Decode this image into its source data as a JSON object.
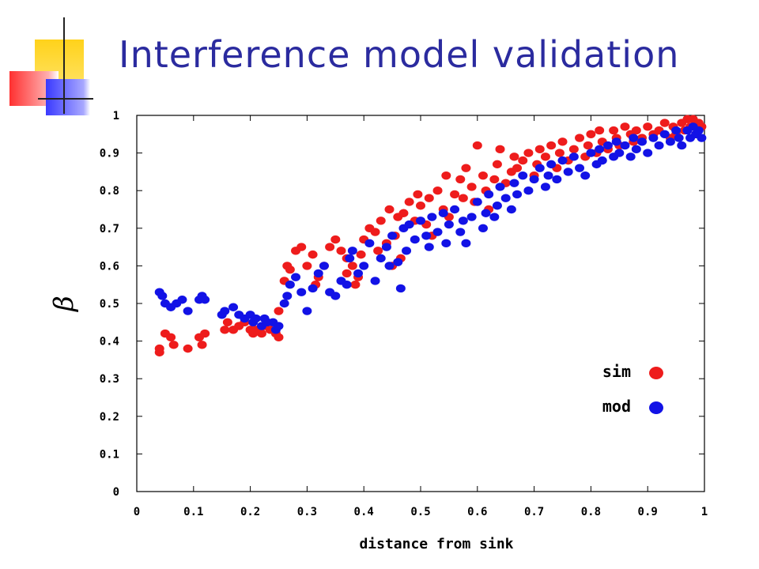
{
  "slide": {
    "title": "Interference model validation"
  },
  "chart_data": {
    "type": "scatter",
    "title": "",
    "xlabel": "distance from sink",
    "ylabel": "β",
    "xlim": [
      0,
      1
    ],
    "ylim": [
      0,
      1
    ],
    "x_ticks": [
      "0",
      "0.1",
      "0.2",
      "0.3",
      "0.4",
      "0.5",
      "0.6",
      "0.7",
      "0.8",
      "0.9",
      "1"
    ],
    "y_ticks": [
      "0",
      "0.1",
      "0.2",
      "0.3",
      "0.4",
      "0.5",
      "0.6",
      "0.7",
      "0.8",
      "0.9",
      "1"
    ],
    "grid": false,
    "legend_position": "bottom-right",
    "series": [
      {
        "name": "sim",
        "color": "#ee1c1c",
        "points": [
          [
            0.04,
            0.38
          ],
          [
            0.04,
            0.37
          ],
          [
            0.05,
            0.42
          ],
          [
            0.06,
            0.41
          ],
          [
            0.065,
            0.39
          ],
          [
            0.09,
            0.38
          ],
          [
            0.11,
            0.41
          ],
          [
            0.115,
            0.39
          ],
          [
            0.12,
            0.42
          ],
          [
            0.155,
            0.43
          ],
          [
            0.16,
            0.45
          ],
          [
            0.17,
            0.43
          ],
          [
            0.18,
            0.44
          ],
          [
            0.19,
            0.45
          ],
          [
            0.2,
            0.43
          ],
          [
            0.205,
            0.42
          ],
          [
            0.21,
            0.43
          ],
          [
            0.22,
            0.42
          ],
          [
            0.225,
            0.44
          ],
          [
            0.235,
            0.43
          ],
          [
            0.245,
            0.42
          ],
          [
            0.25,
            0.41
          ],
          [
            0.25,
            0.48
          ],
          [
            0.26,
            0.56
          ],
          [
            0.265,
            0.6
          ],
          [
            0.27,
            0.59
          ],
          [
            0.28,
            0.64
          ],
          [
            0.29,
            0.65
          ],
          [
            0.3,
            0.6
          ],
          [
            0.31,
            0.63
          ],
          [
            0.315,
            0.55
          ],
          [
            0.32,
            0.57
          ],
          [
            0.33,
            0.6
          ],
          [
            0.34,
            0.65
          ],
          [
            0.35,
            0.67
          ],
          [
            0.36,
            0.64
          ],
          [
            0.37,
            0.62
          ],
          [
            0.37,
            0.58
          ],
          [
            0.38,
            0.6
          ],
          [
            0.385,
            0.55
          ],
          [
            0.39,
            0.57
          ],
          [
            0.395,
            0.63
          ],
          [
            0.4,
            0.67
          ],
          [
            0.41,
            0.7
          ],
          [
            0.42,
            0.69
          ],
          [
            0.425,
            0.64
          ],
          [
            0.43,
            0.72
          ],
          [
            0.44,
            0.66
          ],
          [
            0.445,
            0.75
          ],
          [
            0.45,
            0.6
          ],
          [
            0.455,
            0.68
          ],
          [
            0.46,
            0.73
          ],
          [
            0.465,
            0.62
          ],
          [
            0.47,
            0.74
          ],
          [
            0.48,
            0.77
          ],
          [
            0.49,
            0.72
          ],
          [
            0.495,
            0.79
          ],
          [
            0.5,
            0.76
          ],
          [
            0.51,
            0.71
          ],
          [
            0.515,
            0.78
          ],
          [
            0.52,
            0.68
          ],
          [
            0.53,
            0.8
          ],
          [
            0.54,
            0.75
          ],
          [
            0.545,
            0.84
          ],
          [
            0.55,
            0.73
          ],
          [
            0.56,
            0.79
          ],
          [
            0.57,
            0.83
          ],
          [
            0.575,
            0.78
          ],
          [
            0.58,
            0.86
          ],
          [
            0.59,
            0.81
          ],
          [
            0.595,
            0.77
          ],
          [
            0.6,
            0.92
          ],
          [
            0.61,
            0.84
          ],
          [
            0.615,
            0.8
          ],
          [
            0.62,
            0.75
          ],
          [
            0.63,
            0.83
          ],
          [
            0.635,
            0.87
          ],
          [
            0.64,
            0.91
          ],
          [
            0.65,
            0.82
          ],
          [
            0.66,
            0.85
          ],
          [
            0.665,
            0.89
          ],
          [
            0.67,
            0.86
          ],
          [
            0.68,
            0.88
          ],
          [
            0.69,
            0.9
          ],
          [
            0.7,
            0.84
          ],
          [
            0.705,
            0.87
          ],
          [
            0.71,
            0.91
          ],
          [
            0.72,
            0.89
          ],
          [
            0.73,
            0.92
          ],
          [
            0.74,
            0.86
          ],
          [
            0.745,
            0.9
          ],
          [
            0.75,
            0.93
          ],
          [
            0.76,
            0.88
          ],
          [
            0.77,
            0.91
          ],
          [
            0.78,
            0.94
          ],
          [
            0.79,
            0.89
          ],
          [
            0.795,
            0.92
          ],
          [
            0.8,
            0.95
          ],
          [
            0.81,
            0.9
          ],
          [
            0.815,
            0.96
          ],
          [
            0.82,
            0.93
          ],
          [
            0.83,
            0.91
          ],
          [
            0.84,
            0.96
          ],
          [
            0.845,
            0.94
          ],
          [
            0.85,
            0.92
          ],
          [
            0.86,
            0.97
          ],
          [
            0.87,
            0.95
          ],
          [
            0.875,
            0.93
          ],
          [
            0.88,
            0.96
          ],
          [
            0.89,
            0.94
          ],
          [
            0.9,
            0.97
          ],
          [
            0.91,
            0.95
          ],
          [
            0.92,
            0.96
          ],
          [
            0.93,
            0.98
          ],
          [
            0.94,
            0.94
          ],
          [
            0.945,
            0.97
          ],
          [
            0.95,
            0.95
          ],
          [
            0.96,
            0.98
          ],
          [
            0.965,
            0.96
          ],
          [
            0.97,
            0.99
          ],
          [
            0.975,
            0.97
          ],
          [
            0.98,
            0.99
          ],
          [
            0.985,
            0.95
          ],
          [
            0.99,
            0.98
          ],
          [
            0.995,
            0.97
          ]
        ]
      },
      {
        "name": "mod",
        "color": "#1212e6",
        "points": [
          [
            0.04,
            0.53
          ],
          [
            0.045,
            0.52
          ],
          [
            0.05,
            0.5
          ],
          [
            0.06,
            0.49
          ],
          [
            0.07,
            0.5
          ],
          [
            0.08,
            0.51
          ],
          [
            0.09,
            0.48
          ],
          [
            0.11,
            0.51
          ],
          [
            0.115,
            0.52
          ],
          [
            0.12,
            0.51
          ],
          [
            0.15,
            0.47
          ],
          [
            0.155,
            0.48
          ],
          [
            0.17,
            0.49
          ],
          [
            0.18,
            0.47
          ],
          [
            0.19,
            0.46
          ],
          [
            0.2,
            0.47
          ],
          [
            0.205,
            0.45
          ],
          [
            0.21,
            0.46
          ],
          [
            0.22,
            0.44
          ],
          [
            0.225,
            0.46
          ],
          [
            0.23,
            0.45
          ],
          [
            0.24,
            0.45
          ],
          [
            0.245,
            0.43
          ],
          [
            0.25,
            0.44
          ],
          [
            0.26,
            0.5
          ],
          [
            0.265,
            0.52
          ],
          [
            0.27,
            0.55
          ],
          [
            0.28,
            0.57
          ],
          [
            0.29,
            0.53
          ],
          [
            0.3,
            0.48
          ],
          [
            0.31,
            0.54
          ],
          [
            0.32,
            0.58
          ],
          [
            0.33,
            0.6
          ],
          [
            0.34,
            0.53
          ],
          [
            0.35,
            0.52
          ],
          [
            0.36,
            0.56
          ],
          [
            0.37,
            0.55
          ],
          [
            0.375,
            0.62
          ],
          [
            0.38,
            0.64
          ],
          [
            0.39,
            0.58
          ],
          [
            0.4,
            0.6
          ],
          [
            0.41,
            0.66
          ],
          [
            0.42,
            0.56
          ],
          [
            0.43,
            0.62
          ],
          [
            0.44,
            0.65
          ],
          [
            0.445,
            0.6
          ],
          [
            0.45,
            0.68
          ],
          [
            0.46,
            0.61
          ],
          [
            0.465,
            0.54
          ],
          [
            0.47,
            0.7
          ],
          [
            0.475,
            0.64
          ],
          [
            0.48,
            0.71
          ],
          [
            0.49,
            0.67
          ],
          [
            0.5,
            0.72
          ],
          [
            0.51,
            0.68
          ],
          [
            0.515,
            0.65
          ],
          [
            0.52,
            0.73
          ],
          [
            0.53,
            0.69
          ],
          [
            0.54,
            0.74
          ],
          [
            0.545,
            0.66
          ],
          [
            0.55,
            0.71
          ],
          [
            0.56,
            0.75
          ],
          [
            0.57,
            0.69
          ],
          [
            0.575,
            0.72
          ],
          [
            0.58,
            0.66
          ],
          [
            0.59,
            0.73
          ],
          [
            0.6,
            0.77
          ],
          [
            0.61,
            0.7
          ],
          [
            0.615,
            0.74
          ],
          [
            0.62,
            0.79
          ],
          [
            0.63,
            0.73
          ],
          [
            0.635,
            0.76
          ],
          [
            0.64,
            0.81
          ],
          [
            0.65,
            0.78
          ],
          [
            0.66,
            0.75
          ],
          [
            0.665,
            0.82
          ],
          [
            0.67,
            0.79
          ],
          [
            0.68,
            0.84
          ],
          [
            0.69,
            0.8
          ],
          [
            0.7,
            0.83
          ],
          [
            0.71,
            0.86
          ],
          [
            0.72,
            0.81
          ],
          [
            0.725,
            0.84
          ],
          [
            0.73,
            0.87
          ],
          [
            0.74,
            0.83
          ],
          [
            0.75,
            0.88
          ],
          [
            0.76,
            0.85
          ],
          [
            0.77,
            0.89
          ],
          [
            0.78,
            0.86
          ],
          [
            0.79,
            0.84
          ],
          [
            0.8,
            0.9
          ],
          [
            0.81,
            0.87
          ],
          [
            0.815,
            0.91
          ],
          [
            0.82,
            0.88
          ],
          [
            0.83,
            0.92
          ],
          [
            0.84,
            0.89
          ],
          [
            0.845,
            0.93
          ],
          [
            0.85,
            0.9
          ],
          [
            0.86,
            0.92
          ],
          [
            0.87,
            0.89
          ],
          [
            0.875,
            0.94
          ],
          [
            0.88,
            0.91
          ],
          [
            0.89,
            0.93
          ],
          [
            0.9,
            0.9
          ],
          [
            0.91,
            0.94
          ],
          [
            0.92,
            0.92
          ],
          [
            0.93,
            0.95
          ],
          [
            0.94,
            0.93
          ],
          [
            0.95,
            0.96
          ],
          [
            0.955,
            0.94
          ],
          [
            0.96,
            0.92
          ],
          [
            0.97,
            0.96
          ],
          [
            0.975,
            0.94
          ],
          [
            0.98,
            0.97
          ],
          [
            0.985,
            0.95
          ],
          [
            0.99,
            0.96
          ],
          [
            0.995,
            0.94
          ]
        ]
      }
    ]
  }
}
